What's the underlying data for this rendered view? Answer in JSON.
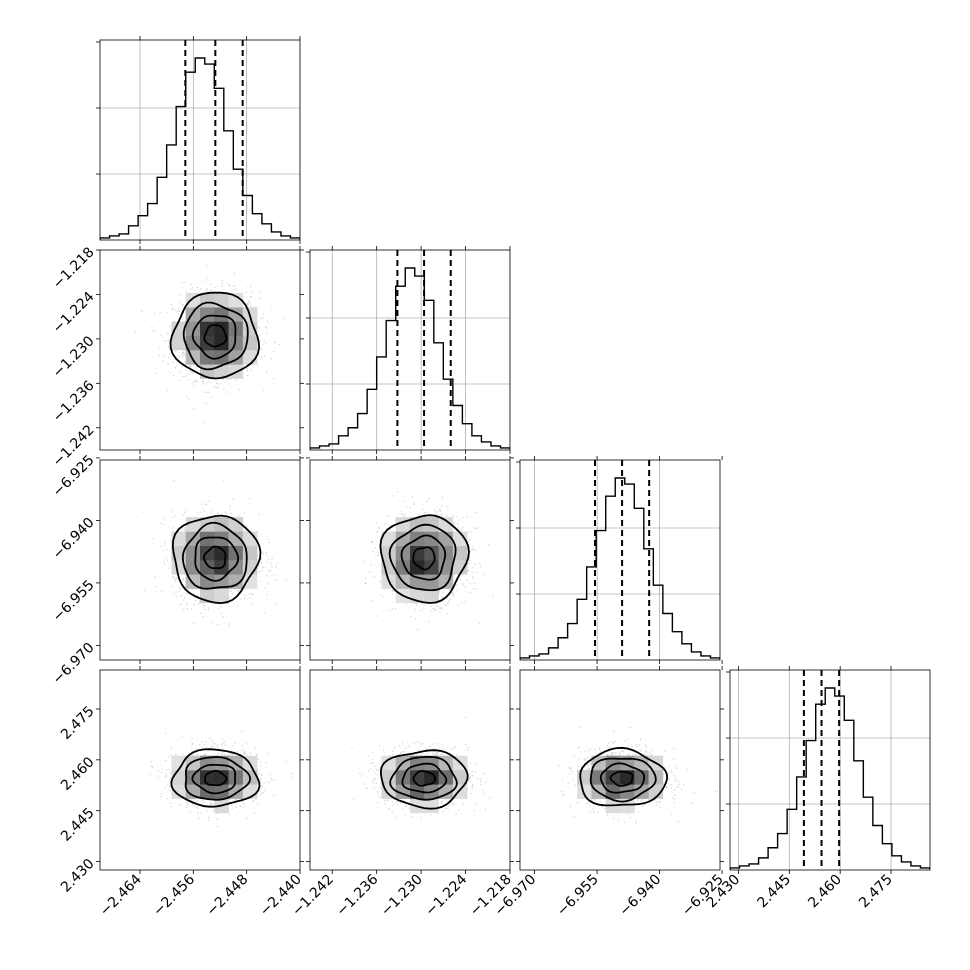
{
  "chart_data": {
    "type": "corner",
    "parameters": [
      {
        "range": [
          -2.47,
          -2.44
        ],
        "ticks": [
          -2.464,
          -2.456,
          -2.448,
          -2.44
        ],
        "tick_labels": [
          "−2.464",
          "−2.456",
          "−2.448",
          "−2.440"
        ],
        "quantiles": [
          -2.4572,
          -2.4527,
          -2.4486
        ],
        "mean": -2.4527,
        "sd": 0.0032
      },
      {
        "range": [
          -1.245,
          -1.218
        ],
        "ticks": [
          -1.242,
          -1.236,
          -1.23,
          -1.224,
          -1.218
        ],
        "tick_labels": [
          "−1.242",
          "−1.236",
          "−1.230",
          "−1.224",
          "−1.218"
        ],
        "quantiles": [
          -1.2332,
          -1.2296,
          -1.226
        ],
        "mean": -1.2296,
        "sd": 0.0029
      },
      {
        "range": [
          -6.9735,
          -6.9255
        ],
        "ticks": [
          -6.97,
          -6.955,
          -6.94,
          -6.925
        ],
        "tick_labels": [
          "−6.970",
          "−6.955",
          "−6.940",
          "−6.925"
        ],
        "quantiles": [
          -6.9555,
          -6.949,
          -6.9425
        ],
        "mean": -6.949,
        "sd": 0.0052
      },
      {
        "range": [
          2.4275,
          2.4865
        ],
        "ticks": [
          2.43,
          2.445,
          2.46,
          2.475
        ],
        "tick_labels": [
          "2.430",
          "2.445",
          "2.460",
          "2.475"
        ],
        "quantiles": [
          2.4493,
          2.4545,
          2.4597
        ],
        "mean": 2.4545,
        "sd": 0.0042
      }
    ],
    "histogram_counts": [
      [
        1,
        2,
        3,
        7,
        12,
        18,
        31,
        47,
        66,
        83,
        90,
        87,
        75,
        54,
        35,
        22,
        13,
        8,
        4,
        2,
        1
      ],
      [
        1,
        2,
        3,
        7,
        11,
        18,
        30,
        46,
        64,
        81,
        90,
        86,
        74,
        53,
        35,
        22,
        13,
        7,
        4,
        2,
        1
      ],
      [
        1,
        2,
        3,
        6,
        11,
        18,
        30,
        46,
        64,
        81,
        90,
        87,
        75,
        55,
        37,
        23,
        14,
        8,
        4,
        2,
        1
      ],
      [
        1,
        2,
        3,
        6,
        11,
        18,
        30,
        46,
        64,
        82,
        90,
        86,
        74,
        54,
        36,
        22,
        13,
        7,
        4,
        2,
        1
      ]
    ],
    "contour_levels_sigma": [
      0.5,
      1,
      1.5,
      2
    ],
    "grid": true
  }
}
